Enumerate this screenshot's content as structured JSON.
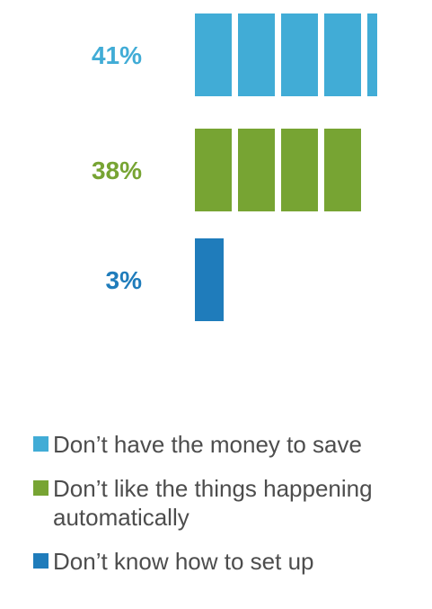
{
  "chart_data": {
    "type": "bar",
    "orientation": "horizontal",
    "categories": [
      "Don’t have the money to save",
      "Don’t like the things happening automatically",
      "Don’t know how to set up"
    ],
    "values": [
      41,
      38,
      3
    ],
    "value_labels": [
      "41%",
      "38%",
      "3%"
    ],
    "colors": [
      "#41acd6",
      "#77a433",
      "#1f7cbb"
    ],
    "unit": "%",
    "segment_size": 10,
    "legend_position": "bottom",
    "grid": false
  }
}
